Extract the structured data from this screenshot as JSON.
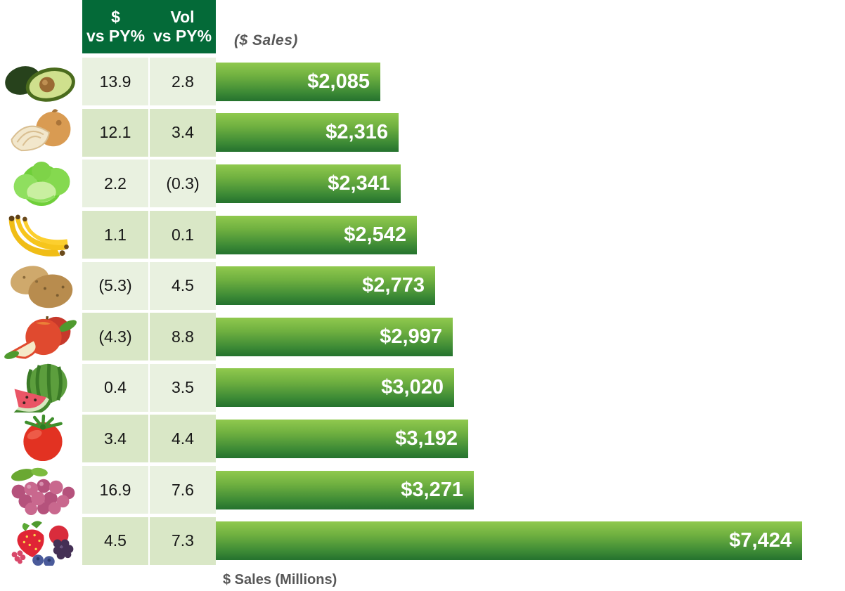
{
  "header": {
    "col1_line1": "$",
    "col1_line2": "vs PY%",
    "col2_line1": "Vol",
    "col2_line2": "vs PY%",
    "sales_note": "($ Sales)"
  },
  "axis": {
    "xlabel": "$ Sales (Millions)"
  },
  "colors": {
    "header_green": "#046a38",
    "row_light": "#e9f1e0",
    "row_dark": "#d9e7c6",
    "bar_gradient_top": "#90c94e",
    "bar_gradient_bottom": "#24722e",
    "bar_text": "#ffffff",
    "label_gray": "#575757",
    "cell_text": "#161616"
  },
  "chart_data": {
    "type": "bar",
    "orientation": "horizontal",
    "title": "($ Sales)",
    "xlabel": "$ Sales (Millions)",
    "value_unit": "USD millions",
    "axis_min": 0,
    "axis_max": 8000,
    "grid": false,
    "legend": false,
    "columns": [
      "$ vs PY%",
      "Vol vs PY%",
      "$ Sales"
    ],
    "rows": [
      {
        "item": "avocado",
        "dollar_vs_py_pct": "13.9",
        "vol_vs_py_pct": "2.8",
        "sales": 2085,
        "sales_label": "$2,085"
      },
      {
        "item": "onion",
        "dollar_vs_py_pct": "12.1",
        "vol_vs_py_pct": "3.4",
        "sales": 2316,
        "sales_label": "$2,316"
      },
      {
        "item": "lettuce",
        "dollar_vs_py_pct": "2.2",
        "vol_vs_py_pct": "(0.3)",
        "sales": 2341,
        "sales_label": "$2,341"
      },
      {
        "item": "bananas",
        "dollar_vs_py_pct": "1.1",
        "vol_vs_py_pct": "0.1",
        "sales": 2542,
        "sales_label": "$2,542"
      },
      {
        "item": "potatoes",
        "dollar_vs_py_pct": "(5.3)",
        "vol_vs_py_pct": "4.5",
        "sales": 2773,
        "sales_label": "$2,773"
      },
      {
        "item": "apples",
        "dollar_vs_py_pct": "(4.3)",
        "vol_vs_py_pct": "8.8",
        "sales": 2997,
        "sales_label": "$2,997"
      },
      {
        "item": "watermelon",
        "dollar_vs_py_pct": "0.4",
        "vol_vs_py_pct": "3.5",
        "sales": 3020,
        "sales_label": "$3,020"
      },
      {
        "item": "tomato",
        "dollar_vs_py_pct": "3.4",
        "vol_vs_py_pct": "4.4",
        "sales": 3192,
        "sales_label": "$3,192"
      },
      {
        "item": "grapes",
        "dollar_vs_py_pct": "16.9",
        "vol_vs_py_pct": "7.6",
        "sales": 3271,
        "sales_label": "$3,271"
      },
      {
        "item": "berries",
        "dollar_vs_py_pct": "4.5",
        "vol_vs_py_pct": "7.3",
        "sales": 7424,
        "sales_label": "$7,424"
      }
    ]
  }
}
